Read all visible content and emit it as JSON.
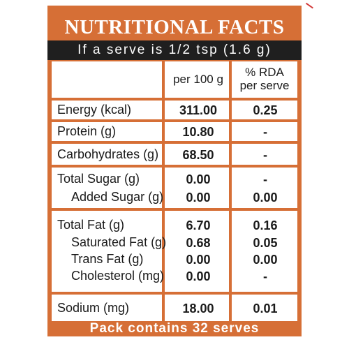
{
  "title": "NUTRITIONAL FACTS",
  "serve_info": "If a serve is 1/2 tsp (1.6 g)",
  "headers": {
    "per_100g": "per 100 g",
    "rda_line1": "% RDA",
    "rda_line2": "per serve"
  },
  "rows": [
    {
      "label": "Energy (kcal)",
      "per_100g": "311.00",
      "rda": "0.25"
    },
    {
      "label": "Protein (g)",
      "per_100g": "10.80",
      "rda": "-"
    },
    {
      "label": "Carbohydrates (g)",
      "per_100g": "68.50",
      "rda": "-"
    },
    {
      "label": "Total Sugar (g)",
      "per_100g": "0.00",
      "rda": "-"
    },
    {
      "label": "Added Sugar (g)",
      "per_100g": "0.00",
      "rda": "0.00"
    },
    {
      "label": "Total Fat (g)",
      "per_100g": "6.70",
      "rda": "0.16"
    },
    {
      "label": "Saturated Fat (g)",
      "per_100g": "0.68",
      "rda": "0.05"
    },
    {
      "label": "Trans Fat (g)",
      "per_100g": "0.00",
      "rda": "0.00"
    },
    {
      "label": "Cholesterol (mg)",
      "per_100g": "0.00",
      "rda": "-"
    },
    {
      "label": "Sodium (mg)",
      "per_100g": "18.00",
      "rda": "0.01"
    }
  ],
  "footer": "Pack contains 32 serves",
  "colors": {
    "accent": "#d66f36",
    "serve_bar": "#1f1f1f"
  }
}
